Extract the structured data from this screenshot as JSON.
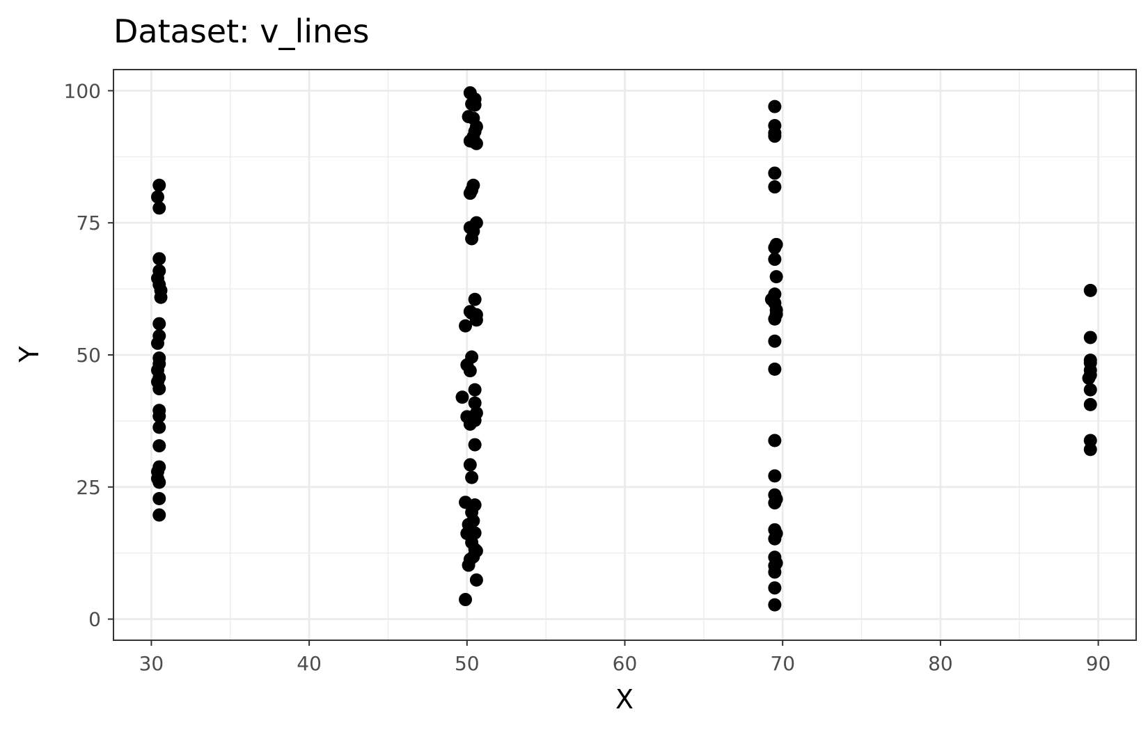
{
  "chart_data": {
    "type": "scatter",
    "title": "Dataset: v_lines",
    "xlabel": "X",
    "ylabel": "Y",
    "xlim": [
      27.6,
      92.4
    ],
    "ylim": [
      -4,
      104
    ],
    "x_ticks": [
      30,
      40,
      50,
      60,
      70,
      80,
      90
    ],
    "x_tick_labels": [
      "30",
      "40",
      "50",
      "60",
      "70",
      "80",
      "90"
    ],
    "y_ticks": [
      0,
      25,
      50,
      75,
      100
    ],
    "y_tick_labels": [
      "0",
      "25",
      "50",
      "75",
      "100"
    ],
    "grid": true,
    "legend": "none",
    "point_color": "#000000",
    "series": [
      {
        "points": [
          [
            30.5,
            82.1
          ],
          [
            30.4,
            79.9
          ],
          [
            30.5,
            77.8
          ],
          [
            30.5,
            68.2
          ],
          [
            30.5,
            65.9
          ],
          [
            30.4,
            64.5
          ],
          [
            30.5,
            63.3
          ],
          [
            30.6,
            62.2
          ],
          [
            30.6,
            60.9
          ],
          [
            30.5,
            55.9
          ],
          [
            30.5,
            53.6
          ],
          [
            30.4,
            52.2
          ],
          [
            30.5,
            49.4
          ],
          [
            30.5,
            48.3
          ],
          [
            30.4,
            47.1
          ],
          [
            30.5,
            45.7
          ],
          [
            30.4,
            44.9
          ],
          [
            30.5,
            43.6
          ],
          [
            30.5,
            39.5
          ],
          [
            30.5,
            38.4
          ],
          [
            30.5,
            36.3
          ],
          [
            30.5,
            32.8
          ],
          [
            30.5,
            28.8
          ],
          [
            30.4,
            27.9
          ],
          [
            30.4,
            26.6
          ],
          [
            30.5,
            25.9
          ],
          [
            30.5,
            22.8
          ],
          [
            30.5,
            19.7
          ],
          [
            50.2,
            99.6
          ],
          [
            50.5,
            98.4
          ],
          [
            50.5,
            97.3
          ],
          [
            50.3,
            97.5
          ],
          [
            50.1,
            95.1
          ],
          [
            50.4,
            94.8
          ],
          [
            50.6,
            93.2
          ],
          [
            50.5,
            92.3
          ],
          [
            50.4,
            91.3
          ],
          [
            50.2,
            90.5
          ],
          [
            50.6,
            90.0
          ],
          [
            50.5,
            90.2
          ],
          [
            50.4,
            82.1
          ],
          [
            50.3,
            81.2
          ],
          [
            50.2,
            80.6
          ],
          [
            50.6,
            75.0
          ],
          [
            50.2,
            74.1
          ],
          [
            50.4,
            73.4
          ],
          [
            50.3,
            72.0
          ],
          [
            50.5,
            60.5
          ],
          [
            50.2,
            58.2
          ],
          [
            50.6,
            57.6
          ],
          [
            50.3,
            57.9
          ],
          [
            50.6,
            56.6
          ],
          [
            49.9,
            55.5
          ],
          [
            50.3,
            49.6
          ],
          [
            50.0,
            48.1
          ],
          [
            50.2,
            47.0
          ],
          [
            50.5,
            43.4
          ],
          [
            49.7,
            42.0
          ],
          [
            50.5,
            40.9
          ],
          [
            50.6,
            39.0
          ],
          [
            50.0,
            38.3
          ],
          [
            50.5,
            37.6
          ],
          [
            50.2,
            36.9
          ],
          [
            50.5,
            33.0
          ],
          [
            50.2,
            29.2
          ],
          [
            50.3,
            26.8
          ],
          [
            50.5,
            21.6
          ],
          [
            49.9,
            22.1
          ],
          [
            50.3,
            20.2
          ],
          [
            50.4,
            18.6
          ],
          [
            50.1,
            17.9
          ],
          [
            50.5,
            16.3
          ],
          [
            50.0,
            16.2
          ],
          [
            50.3,
            14.5
          ],
          [
            50.5,
            13.2
          ],
          [
            50.6,
            12.9
          ],
          [
            50.4,
            11.8
          ],
          [
            50.2,
            11.3
          ],
          [
            50.1,
            10.2
          ],
          [
            50.6,
            7.4
          ],
          [
            49.9,
            3.7
          ],
          [
            69.5,
            97.0
          ],
          [
            69.5,
            93.4
          ],
          [
            69.5,
            92.0
          ],
          [
            69.5,
            91.4
          ],
          [
            69.5,
            84.4
          ],
          [
            69.5,
            81.8
          ],
          [
            69.6,
            70.9
          ],
          [
            69.5,
            70.3
          ],
          [
            69.5,
            68.1
          ],
          [
            69.6,
            64.8
          ],
          [
            69.5,
            61.5
          ],
          [
            69.3,
            60.5
          ],
          [
            69.5,
            59.8
          ],
          [
            69.6,
            58.5
          ],
          [
            69.6,
            57.7
          ],
          [
            69.5,
            56.8
          ],
          [
            69.5,
            52.6
          ],
          [
            69.5,
            47.3
          ],
          [
            69.5,
            33.8
          ],
          [
            69.5,
            27.1
          ],
          [
            69.5,
            23.5
          ],
          [
            69.6,
            22.7
          ],
          [
            69.5,
            22.0
          ],
          [
            69.5,
            16.9
          ],
          [
            69.6,
            16.2
          ],
          [
            69.5,
            15.2
          ],
          [
            69.5,
            11.7
          ],
          [
            69.6,
            10.6
          ],
          [
            69.5,
            10.1
          ],
          [
            69.5,
            8.9
          ],
          [
            69.5,
            5.9
          ],
          [
            69.5,
            2.7
          ],
          [
            89.5,
            62.2
          ],
          [
            89.5,
            53.3
          ],
          [
            89.5,
            49.0
          ],
          [
            89.5,
            48.5
          ],
          [
            89.5,
            47.1
          ],
          [
            89.5,
            46.2
          ],
          [
            89.4,
            45.6
          ],
          [
            89.5,
            43.4
          ],
          [
            89.5,
            40.6
          ],
          [
            89.5,
            33.8
          ],
          [
            89.5,
            32.1
          ]
        ]
      }
    ]
  }
}
